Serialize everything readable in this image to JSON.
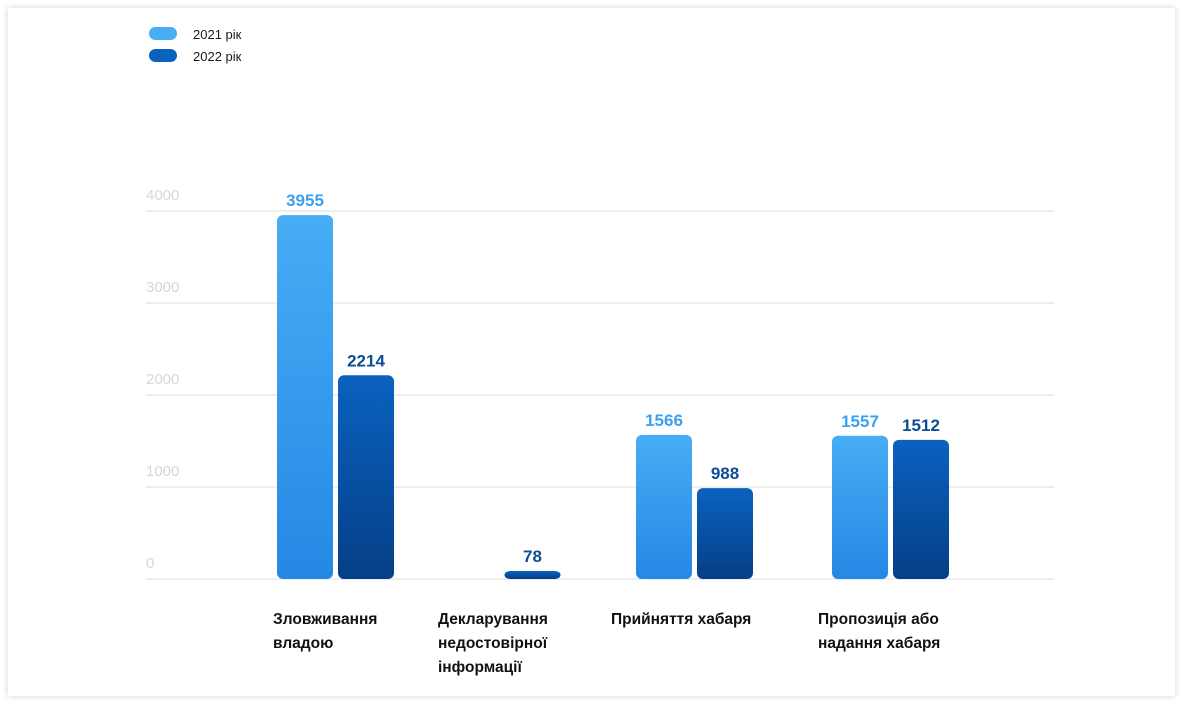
{
  "chart_data": {
    "type": "bar",
    "title": "",
    "xlabel": "",
    "ylabel": "",
    "ylim": [
      0,
      4000
    ],
    "yticks": [
      0,
      1000,
      2000,
      3000,
      4000
    ],
    "grid": true,
    "legend_position": "top-left",
    "categories": [
      [
        "Зловживання",
        "владою"
      ],
      [
        "Декларування",
        "недостовірної",
        "інформації"
      ],
      [
        "Прийняття хабаря"
      ],
      [
        "Пропозиція або",
        "надання хабаря"
      ]
    ],
    "series": [
      {
        "name": "2021 рік",
        "color": "#47adf5",
        "color_dark": "#2588e4",
        "label_color": "#3aa2ee",
        "values": [
          3955,
          null,
          1566,
          1557
        ]
      },
      {
        "name": "2022 рік",
        "color": "#0a62bf",
        "color_dark": "#053f87",
        "label_color": "#0d4d96",
        "values": [
          2214,
          78,
          988,
          1512
        ]
      }
    ]
  }
}
